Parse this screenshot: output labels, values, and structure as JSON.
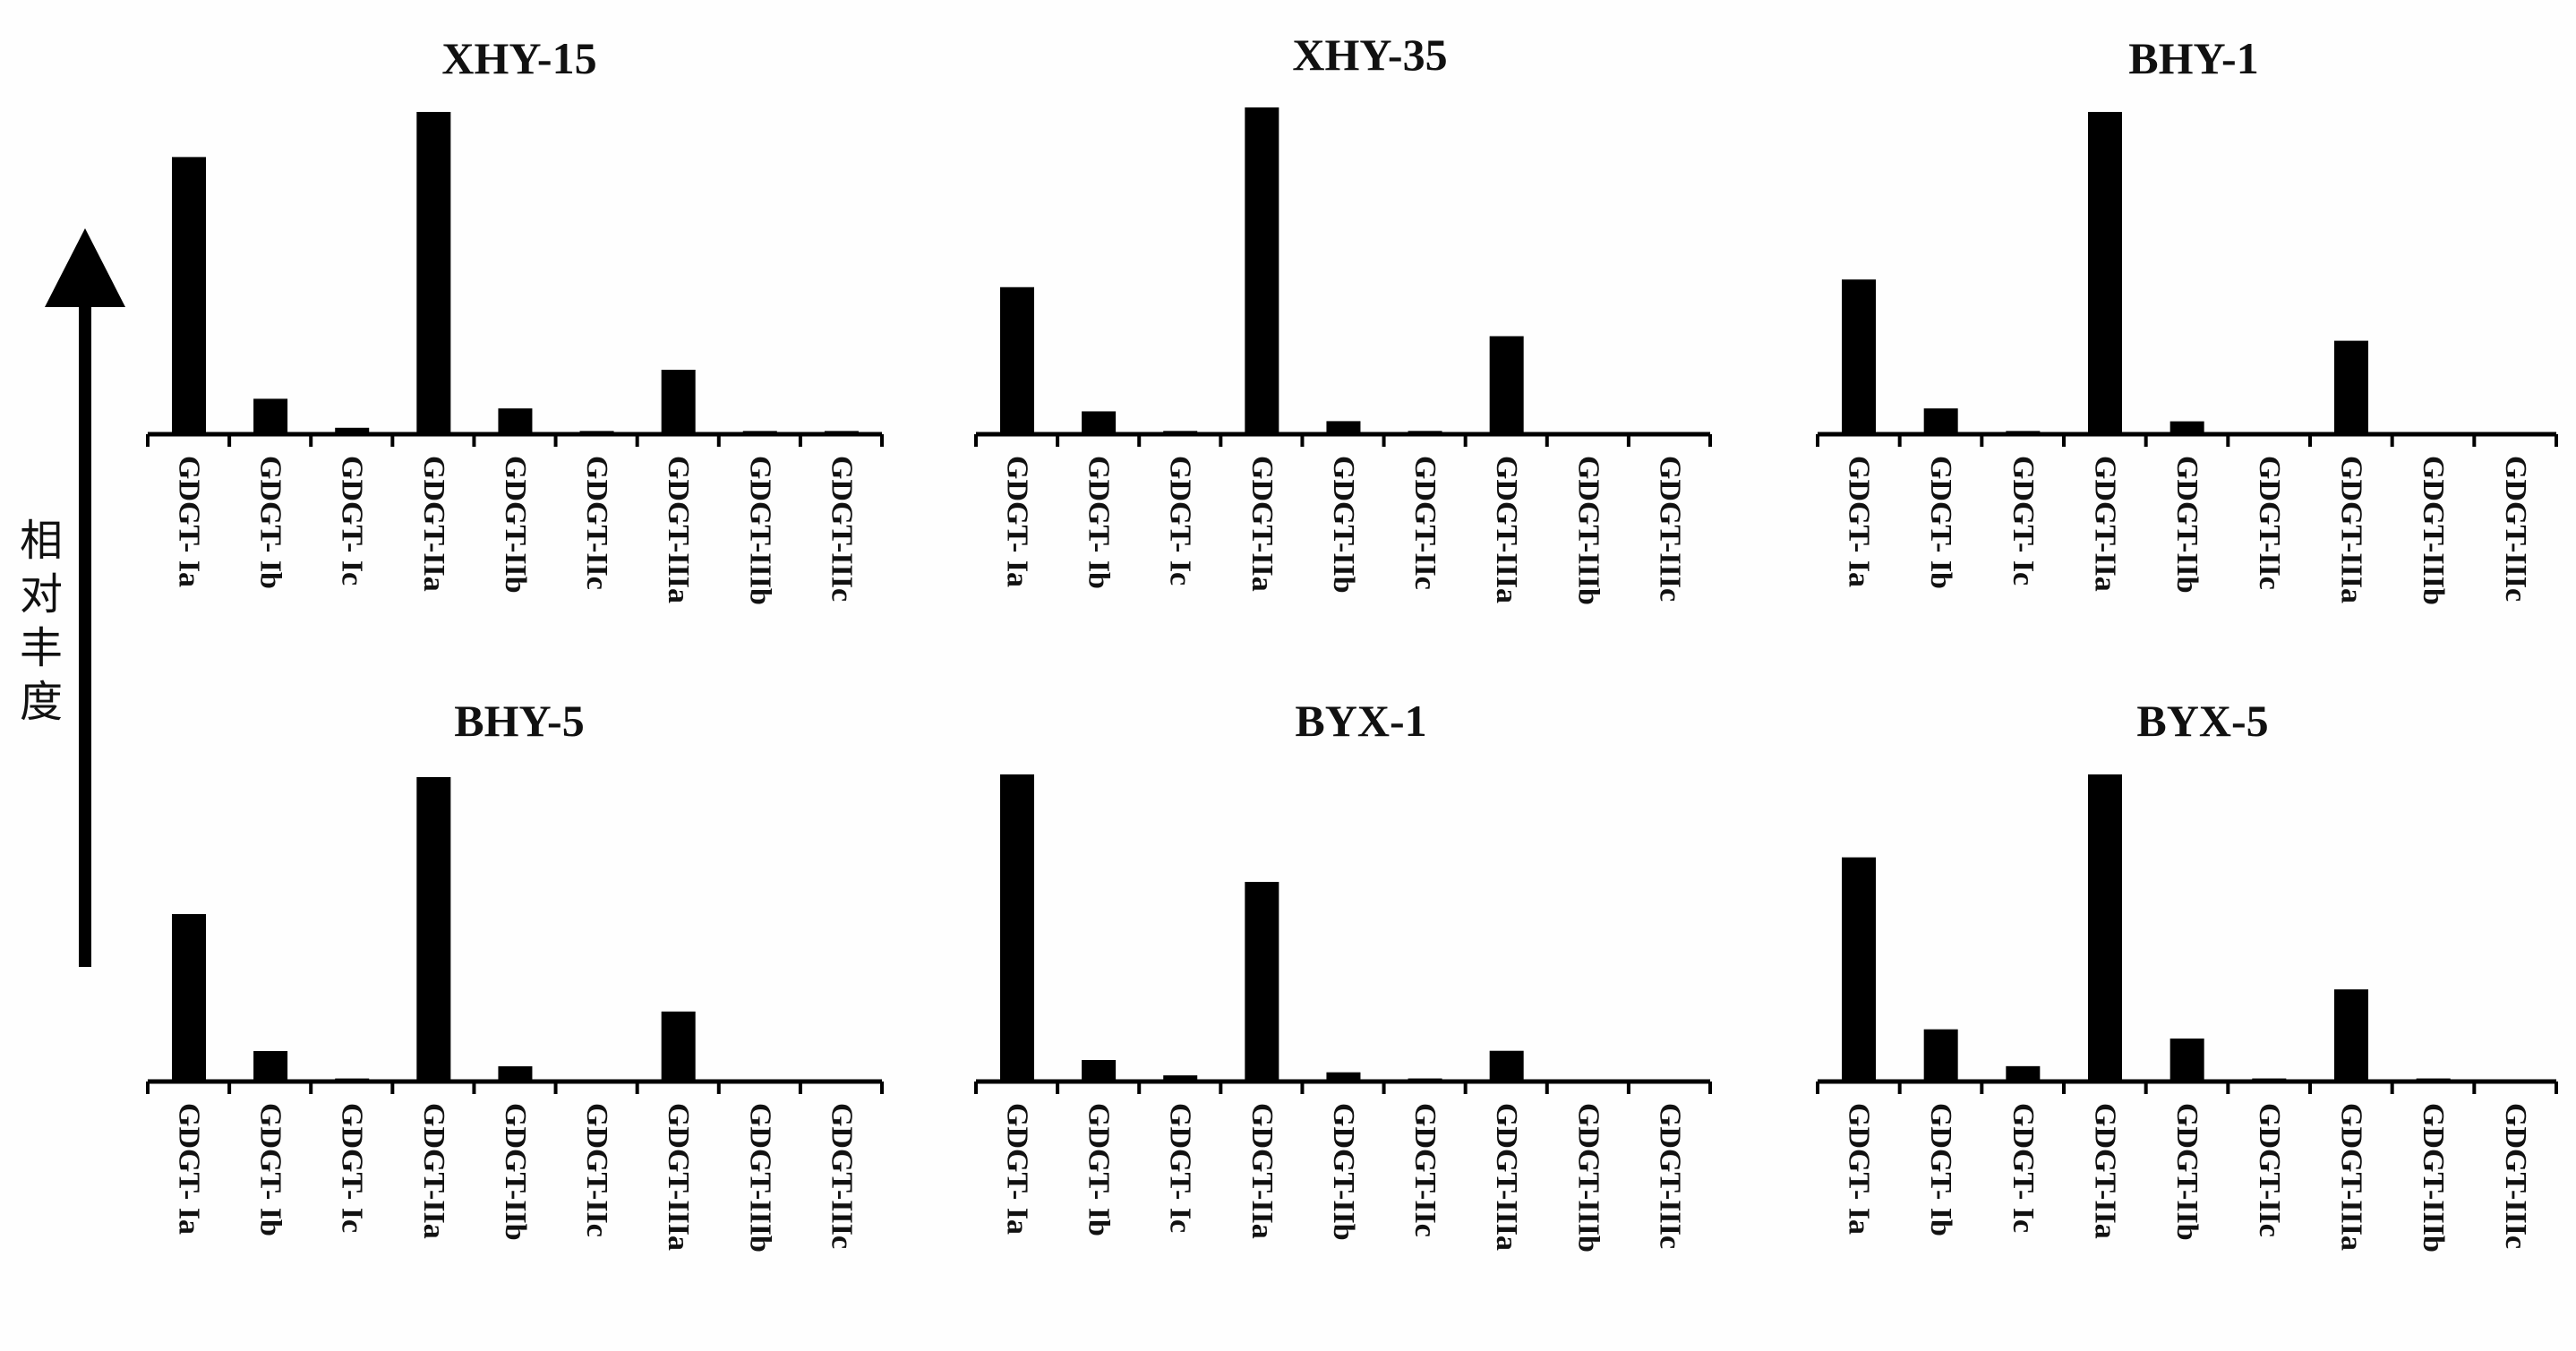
{
  "ylabel": "相对丰度",
  "chart_data": [
    {
      "type": "bar",
      "title": "XHY-15",
      "categories": [
        "GDGT- Ia",
        "GDGT- Ib",
        "GDGT- Ic",
        "GDGT-IIa",
        "GDGT-IIb",
        "GDGT-IIc",
        "GDGT-IIIa",
        "GDGT-IIIb",
        "GDGT-IIIc"
      ],
      "values": [
        0.86,
        0.11,
        0.02,
        1.0,
        0.08,
        0.01,
        0.2,
        0.01,
        0.01
      ],
      "ylabel": "相对丰度",
      "ylim": [
        0,
        1.0
      ]
    },
    {
      "type": "bar",
      "title": "XHY-35",
      "categories": [
        "GDGT- Ia",
        "GDGT- Ib",
        "GDGT- Ic",
        "GDGT-IIa",
        "GDGT-IIb",
        "GDGT-IIc",
        "GDGT-IIIa",
        "GDGT-IIIb",
        "GDGT-IIIc"
      ],
      "values": [
        0.45,
        0.07,
        0.01,
        1.0,
        0.04,
        0.01,
        0.3,
        0.005,
        0.005
      ],
      "ylabel": "相对丰度",
      "ylim": [
        0,
        1.0
      ]
    },
    {
      "type": "bar",
      "title": "BHY-1",
      "categories": [
        "GDGT- Ia",
        "GDGT- Ib",
        "GDGT- Ic",
        "GDGT-IIa",
        "GDGT-IIb",
        "GDGT-IIc",
        "GDGT-IIIa",
        "GDGT-IIIb",
        "GDGT-IIIc"
      ],
      "values": [
        0.48,
        0.08,
        0.01,
        1.0,
        0.04,
        0.0,
        0.29,
        0.0,
        0.0
      ],
      "ylabel": "相对丰度",
      "ylim": [
        0,
        1.0
      ]
    },
    {
      "type": "bar",
      "title": "BHY-5",
      "categories": [
        "GDGT- Ia",
        "GDGT- Ib",
        "GDGT- Ic",
        "GDGT-IIa",
        "GDGT-IIb",
        "GDGT-IIc",
        "GDGT-IIIa",
        "GDGT-IIIb",
        "GDGT-IIIc"
      ],
      "values": [
        0.55,
        0.1,
        0.01,
        1.0,
        0.05,
        0.005,
        0.23,
        0.005,
        0.005
      ],
      "ylabel": "相对丰度",
      "ylim": [
        0,
        1.0
      ]
    },
    {
      "type": "bar",
      "title": "BYX-1",
      "categories": [
        "GDGT- Ia",
        "GDGT- Ib",
        "GDGT- Ic",
        "GDGT-IIa",
        "GDGT-IIb",
        "GDGT-IIc",
        "GDGT-IIIa",
        "GDGT-IIIb",
        "GDGT-IIIc"
      ],
      "values": [
        1.0,
        0.07,
        0.02,
        0.65,
        0.03,
        0.01,
        0.1,
        0.005,
        0.005
      ],
      "ylabel": "相对丰度",
      "ylim": [
        0,
        1.0
      ]
    },
    {
      "type": "bar",
      "title": "BYX-5",
      "categories": [
        "GDGT- Ia",
        "GDGT- Ib",
        "GDGT- Ic",
        "GDGT-IIa",
        "GDGT-IIb",
        "GDGT-IIc",
        "GDGT-IIIa",
        "GDGT-IIIb",
        "GDGT-IIIc"
      ],
      "values": [
        0.73,
        0.17,
        0.05,
        1.0,
        0.14,
        0.01,
        0.3,
        0.01,
        0.005
      ],
      "ylabel": "相对丰度",
      "ylim": [
        0,
        1.0
      ]
    }
  ]
}
